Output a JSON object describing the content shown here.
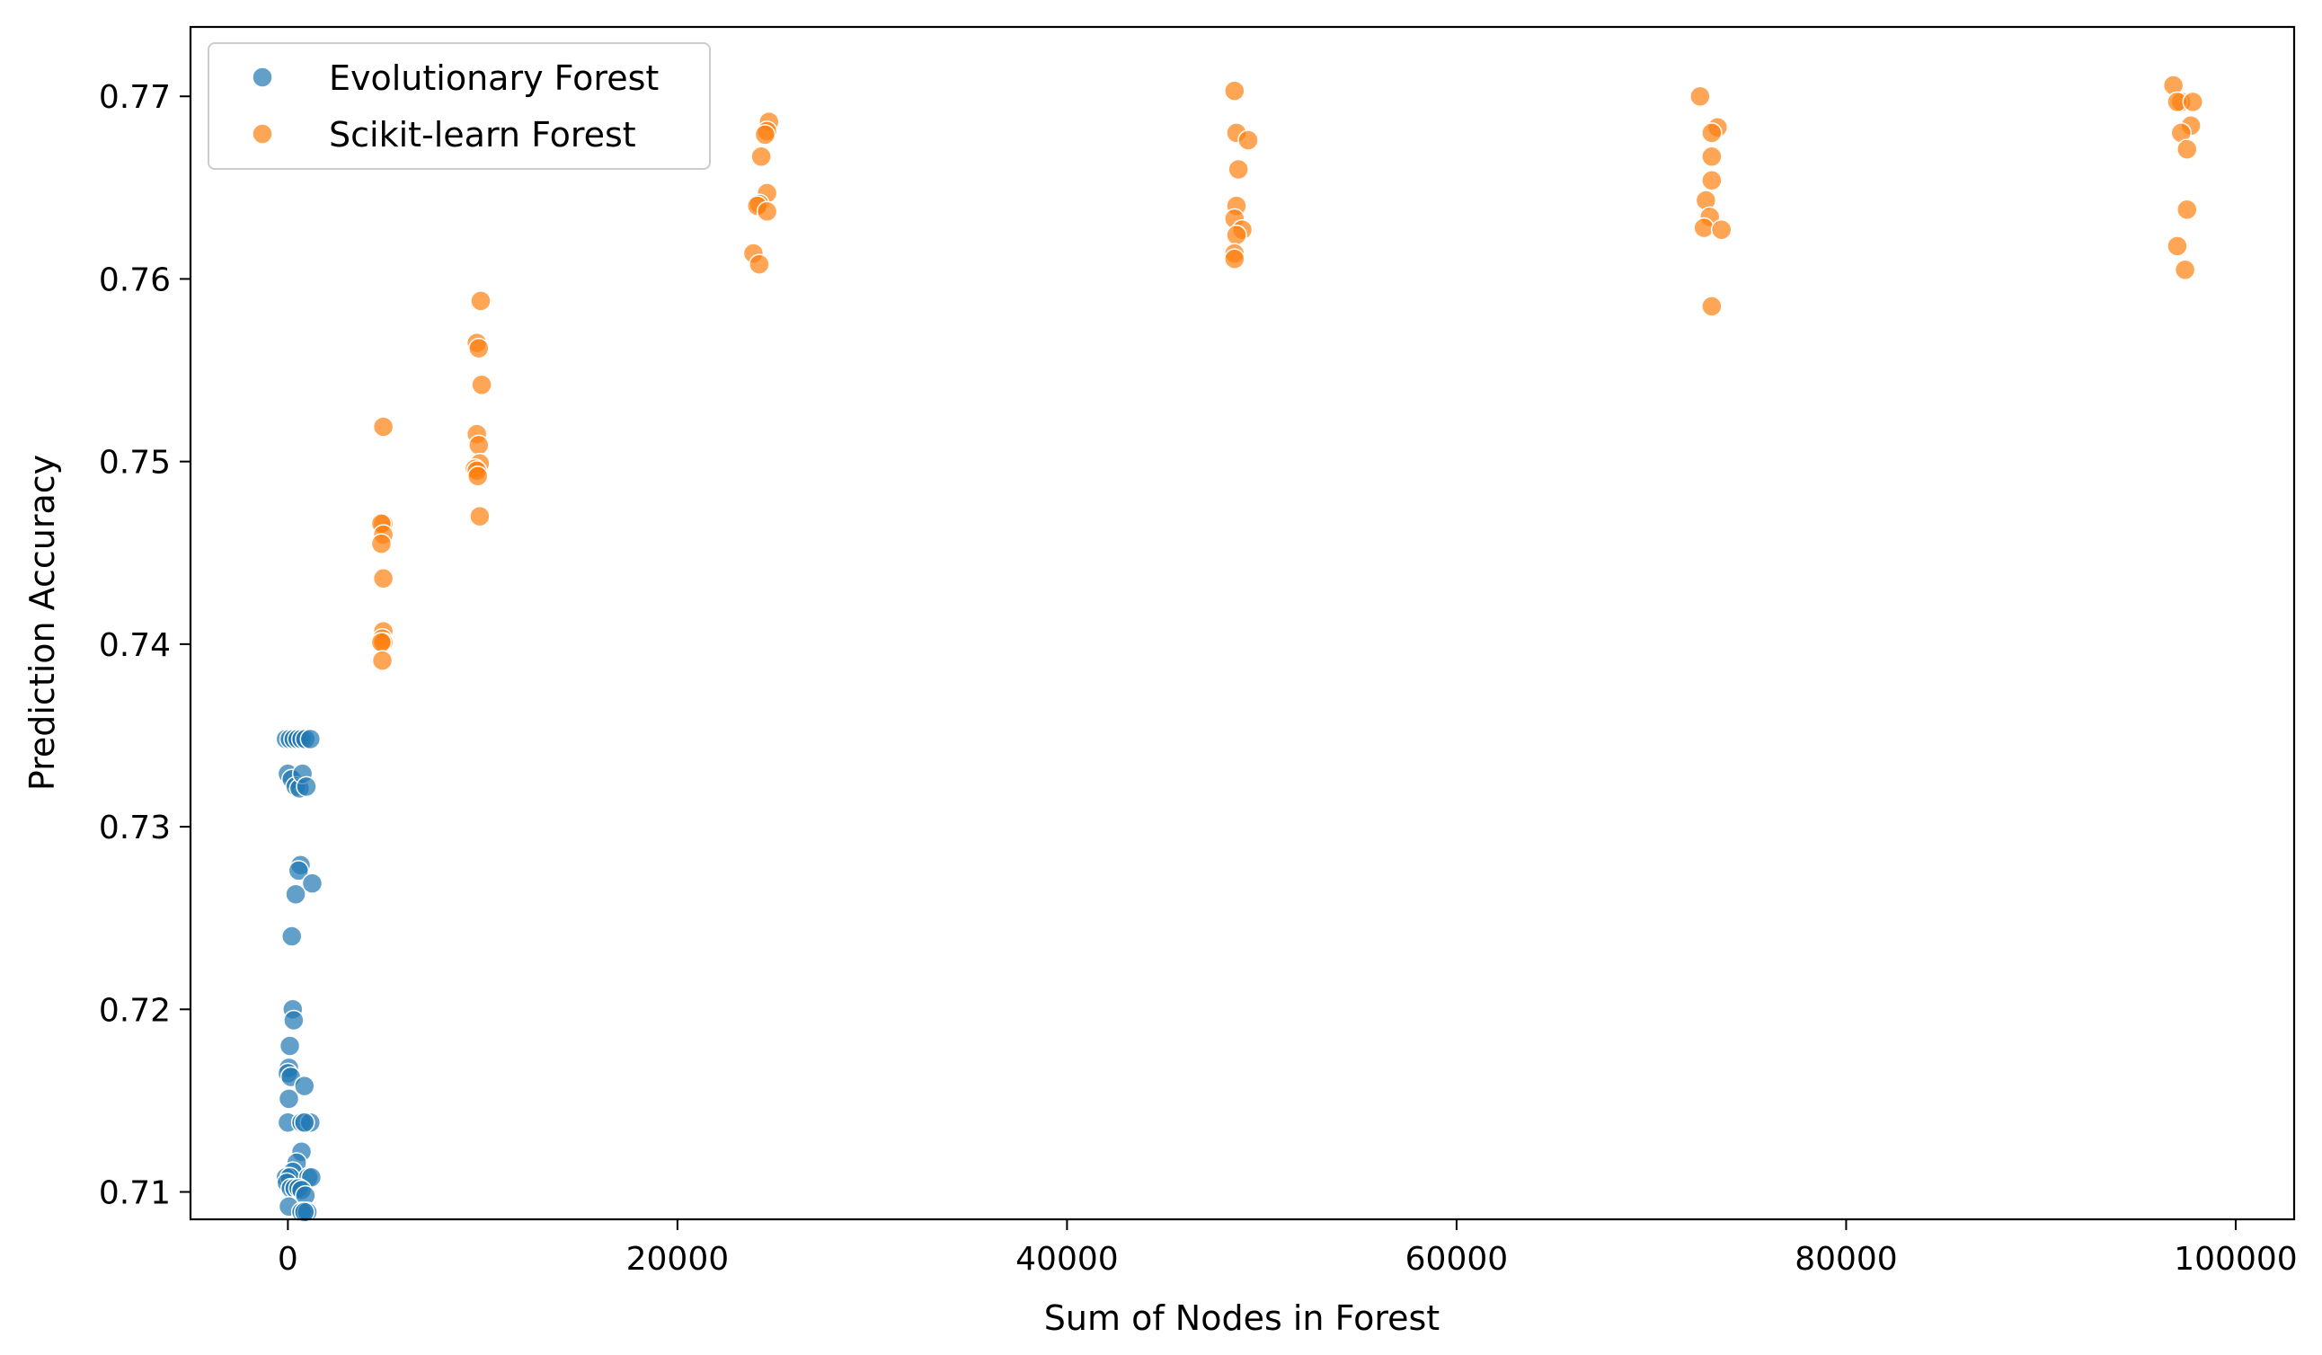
{
  "chart_data": {
    "type": "scatter",
    "title": "",
    "xlabel": "Sum of Nodes in Forest",
    "ylabel": "Prediction Accuracy",
    "xlim": [
      -5000,
      103000
    ],
    "ylim": [
      0.7085,
      0.7738
    ],
    "xticks": [
      0,
      20000,
      40000,
      60000,
      80000,
      100000
    ],
    "xtick_labels": [
      "0",
      "20000",
      "40000",
      "60000",
      "80000",
      "100000"
    ],
    "yticks": [
      0.71,
      0.72,
      0.73,
      0.74,
      0.75,
      0.76,
      0.77
    ],
    "ytick_labels": [
      "0.71",
      "0.72",
      "0.73",
      "0.74",
      "0.75",
      "0.76",
      "0.77"
    ],
    "grid": false,
    "legend_position": "top-left",
    "series": [
      {
        "name": "Evolutionary Forest",
        "color": "#1f77b4",
        "points": [
          [
            -100,
            0.7348
          ],
          [
            100,
            0.7348
          ],
          [
            300,
            0.7348
          ],
          [
            500,
            0.7348
          ],
          [
            700,
            0.7348
          ],
          [
            900,
            0.7348
          ],
          [
            1150,
            0.7348
          ],
          [
            0,
            0.7329
          ],
          [
            200,
            0.7326
          ],
          [
            400,
            0.7322
          ],
          [
            600,
            0.7321
          ],
          [
            750,
            0.7329
          ],
          [
            950,
            0.7322
          ],
          [
            650,
            0.7279
          ],
          [
            550,
            0.7276
          ],
          [
            400,
            0.7263
          ],
          [
            1250,
            0.7269
          ],
          [
            200,
            0.724
          ],
          [
            250,
            0.72
          ],
          [
            300,
            0.7194
          ],
          [
            100,
            0.718
          ],
          [
            50,
            0.7168
          ],
          [
            0,
            0.7165
          ],
          [
            150,
            0.7163
          ],
          [
            850,
            0.7158
          ],
          [
            50,
            0.7151
          ],
          [
            0,
            0.7138
          ],
          [
            700,
            0.7138
          ],
          [
            1150,
            0.7138
          ],
          [
            850,
            0.7138
          ],
          [
            700,
            0.7122
          ],
          [
            450,
            0.7116
          ],
          [
            250,
            0.7111
          ],
          [
            -100,
            0.7108
          ],
          [
            100,
            0.7108
          ],
          [
            1050,
            0.7108
          ],
          [
            1200,
            0.7108
          ],
          [
            -50,
            0.7105
          ],
          [
            150,
            0.7102
          ],
          [
            350,
            0.7102
          ],
          [
            550,
            0.7102
          ],
          [
            700,
            0.7101
          ],
          [
            900,
            0.7098
          ],
          [
            50,
            0.7092
          ],
          [
            700,
            0.7089
          ],
          [
            1000,
            0.7089
          ],
          [
            850,
            0.7089
          ]
        ]
      },
      {
        "name": "Scikit-learn Forest",
        "color": "#ff7f0e",
        "points": [
          [
            4900,
            0.7519
          ],
          [
            4900,
            0.7466
          ],
          [
            4800,
            0.7466
          ],
          [
            4900,
            0.746
          ],
          [
            4800,
            0.7455
          ],
          [
            4900,
            0.7436
          ],
          [
            4900,
            0.7407
          ],
          [
            4850,
            0.7403
          ],
          [
            4900,
            0.7401
          ],
          [
            4800,
            0.7401
          ],
          [
            4850,
            0.7391
          ],
          [
            9900,
            0.7588
          ],
          [
            9700,
            0.7565
          ],
          [
            9800,
            0.7562
          ],
          [
            9950,
            0.7542
          ],
          [
            9700,
            0.7515
          ],
          [
            9800,
            0.7509
          ],
          [
            9850,
            0.7499
          ],
          [
            9600,
            0.7496
          ],
          [
            9700,
            0.7495
          ],
          [
            9750,
            0.7492
          ],
          [
            9850,
            0.747
          ],
          [
            24700,
            0.7686
          ],
          [
            24600,
            0.7681
          ],
          [
            24500,
            0.7679
          ],
          [
            24300,
            0.7667
          ],
          [
            24600,
            0.7647
          ],
          [
            24200,
            0.7641
          ],
          [
            24100,
            0.764
          ],
          [
            24600,
            0.7637
          ],
          [
            23900,
            0.7614
          ],
          [
            24200,
            0.7608
          ],
          [
            48600,
            0.7703
          ],
          [
            48700,
            0.768
          ],
          [
            49300,
            0.7676
          ],
          [
            48800,
            0.766
          ],
          [
            48700,
            0.764
          ],
          [
            48600,
            0.7633
          ],
          [
            49000,
            0.7627
          ],
          [
            48700,
            0.7624
          ],
          [
            48600,
            0.7614
          ],
          [
            48600,
            0.7611
          ],
          [
            72500,
            0.77
          ],
          [
            73400,
            0.7683
          ],
          [
            73100,
            0.768
          ],
          [
            73100,
            0.7667
          ],
          [
            73100,
            0.7654
          ],
          [
            72800,
            0.7643
          ],
          [
            73000,
            0.7634
          ],
          [
            72700,
            0.7628
          ],
          [
            73600,
            0.7627
          ],
          [
            73100,
            0.7585
          ],
          [
            96800,
            0.7706
          ],
          [
            97200,
            0.7697
          ],
          [
            97000,
            0.7697
          ],
          [
            97800,
            0.7697
          ],
          [
            97700,
            0.7684
          ],
          [
            97200,
            0.768
          ],
          [
            97500,
            0.7671
          ],
          [
            97500,
            0.7638
          ],
          [
            97000,
            0.7618
          ],
          [
            97400,
            0.7605
          ]
        ]
      }
    ]
  }
}
